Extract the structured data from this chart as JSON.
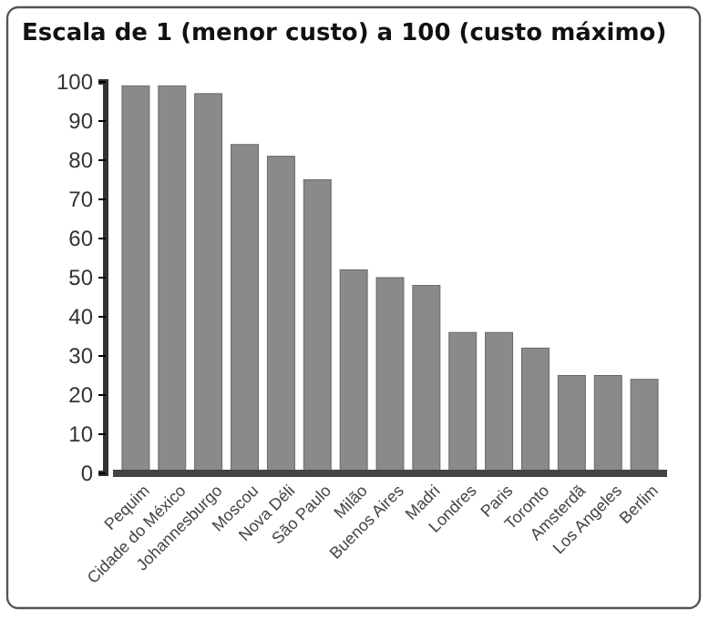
{
  "chart_data": {
    "type": "bar",
    "title": "Escala de 1 (menor custo) a 100 (custo máximo)",
    "categories": [
      "Pequim",
      "Cidade do México",
      "Johannesburgo",
      "Moscou",
      "Nova Déli",
      "São Paulo",
      "Milão",
      "Buenos Aires",
      "Madri",
      "Londres",
      "Paris",
      "Toronto",
      "Amsterdã",
      "Los Angeles",
      "Berlim"
    ],
    "values": [
      99,
      99,
      97,
      84,
      81,
      75,
      52,
      50,
      48,
      36,
      36,
      32,
      25,
      25,
      24
    ],
    "color": "#8a8a8a",
    "ylim": [
      0,
      100
    ],
    "yticks": [
      0,
      10,
      20,
      30,
      40,
      50,
      60,
      70,
      80,
      90,
      100
    ],
    "grid": false
  }
}
